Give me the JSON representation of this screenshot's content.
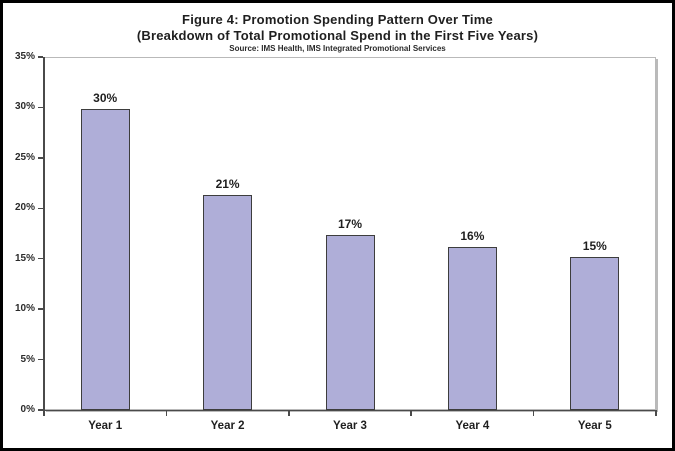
{
  "header": {
    "title": "Figure 4: Promotion Spending Pattern Over Time",
    "subtitle": "(Breakdown of Total Promotional Spend in the First Five Years)",
    "source": "Source: IMS Health, IMS Integrated Promotional Services"
  },
  "chart_data": {
    "type": "bar",
    "title": "Figure 4: Promotion Spending Pattern Over Time",
    "subtitle": "(Breakdown of Total Promotional Spend in the First Five Years)",
    "source": "Source: IMS Health, IMS Integrated Promotional Services",
    "categories": [
      "Year 1",
      "Year 2",
      "Year 3",
      "Year 4",
      "Year 5"
    ],
    "values": [
      30,
      21,
      17,
      16,
      15
    ],
    "value_labels": [
      "30%",
      "21%",
      "17%",
      "16%",
      "15%"
    ],
    "drawn_values": [
      29.8,
      21.3,
      17.4,
      16.2,
      15.2
    ],
    "ylim": [
      0,
      35
    ],
    "ytick_step": 5,
    "ytick_labels": [
      "0%",
      "5%",
      "10%",
      "15%",
      "20%",
      "25%",
      "30%",
      "35%"
    ],
    "grid": false,
    "legend": "none",
    "bar_color": "#afaed8",
    "bar_border_color": "#3d3d3d"
  }
}
